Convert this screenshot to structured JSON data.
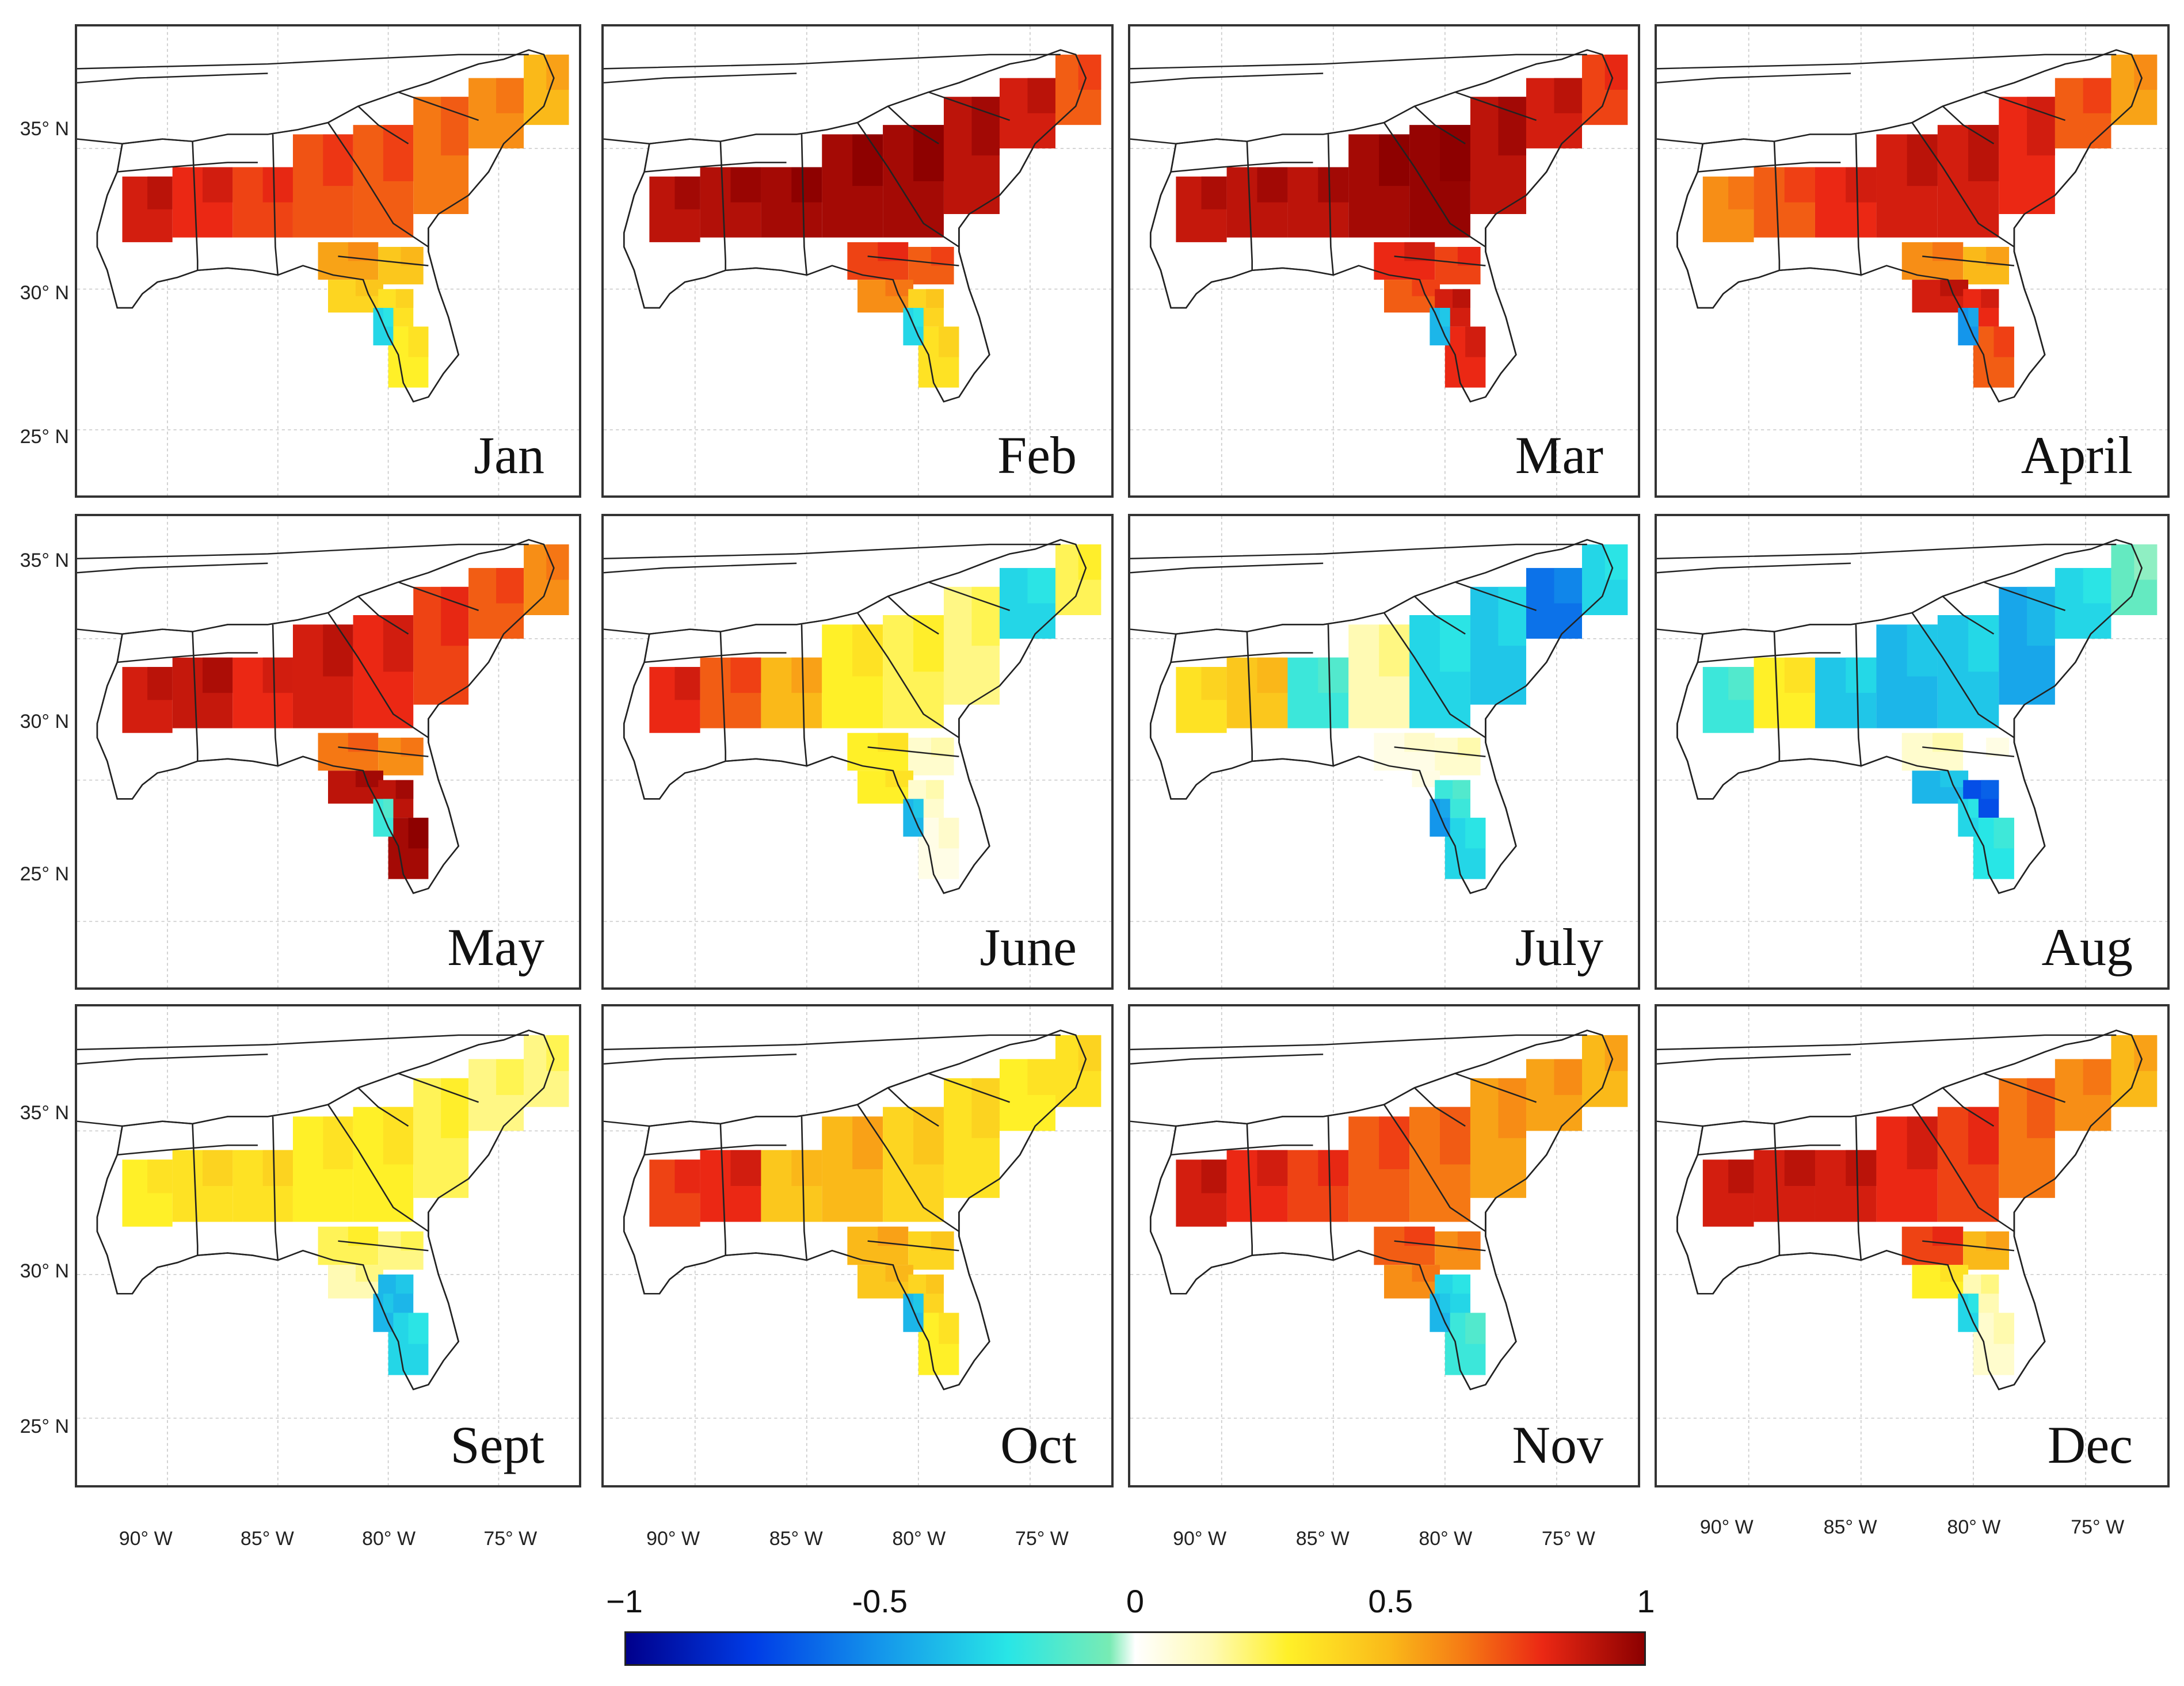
{
  "chart_data": {
    "type": "heatmap",
    "title": "",
    "panels": [
      {
        "month": "Jan",
        "pattern": [
          0.85,
          0.8,
          0.75,
          0.72,
          0.7,
          0.65,
          0.6,
          0.5,
          0.55,
          0.45,
          0.4,
          0.35,
          0.3,
          -0.3
        ]
      },
      {
        "month": "Feb",
        "pattern": [
          0.9,
          0.92,
          0.95,
          0.95,
          0.95,
          0.9,
          0.85,
          0.7,
          0.75,
          0.7,
          0.6,
          0.4,
          0.35,
          -0.3
        ]
      },
      {
        "month": "Mar",
        "pattern": [
          0.88,
          0.9,
          0.9,
          0.95,
          0.98,
          0.9,
          0.85,
          0.75,
          0.8,
          0.75,
          0.7,
          0.85,
          0.8,
          -0.4
        ]
      },
      {
        "month": "April",
        "pattern": [
          0.6,
          0.7,
          0.8,
          0.85,
          0.85,
          0.8,
          0.7,
          0.55,
          0.6,
          0.5,
          0.85,
          0.8,
          0.7,
          -0.5
        ]
      },
      {
        "month": "May",
        "pattern": [
          0.85,
          0.88,
          0.8,
          0.85,
          0.8,
          0.75,
          0.7,
          0.6,
          0.65,
          0.6,
          0.9,
          0.9,
          0.95,
          -0.2
        ]
      },
      {
        "month": "June",
        "pattern": [
          0.8,
          0.7,
          0.5,
          0.3,
          0.25,
          0.2,
          -0.3,
          0.25,
          0.3,
          0.1,
          0.3,
          0.1,
          0.05,
          -0.4
        ]
      },
      {
        "month": "July",
        "pattern": [
          0.35,
          0.45,
          -0.2,
          0.15,
          -0.3,
          -0.35,
          -0.6,
          -0.3,
          0.05,
          0.1,
          0.0,
          -0.2,
          -0.3,
          -0.5
        ]
      },
      {
        "month": "Aug",
        "pattern": [
          -0.2,
          0.3,
          -0.35,
          -0.4,
          -0.35,
          -0.45,
          -0.3,
          -0.1,
          0.1,
          0.0,
          -0.4,
          -0.7,
          -0.25,
          -0.3
        ]
      },
      {
        "month": "Sept",
        "pattern": [
          0.3,
          0.35,
          0.35,
          0.3,
          0.3,
          0.25,
          0.2,
          0.2,
          0.25,
          0.2,
          0.15,
          -0.4,
          -0.3,
          -0.4
        ]
      },
      {
        "month": "Oct",
        "pattern": [
          0.75,
          0.8,
          0.45,
          0.5,
          0.4,
          0.35,
          0.3,
          0.35,
          0.5,
          0.4,
          0.45,
          0.4,
          0.3,
          -0.4
        ]
      },
      {
        "month": "Nov",
        "pattern": [
          0.85,
          0.8,
          0.75,
          0.7,
          0.65,
          0.55,
          0.55,
          0.5,
          0.7,
          0.6,
          0.6,
          -0.3,
          -0.2,
          -0.4
        ]
      },
      {
        "month": "Dec",
        "pattern": [
          0.85,
          0.85,
          0.85,
          0.8,
          0.75,
          0.65,
          0.6,
          0.5,
          0.75,
          0.5,
          0.3,
          0.15,
          0.1,
          -0.3
        ]
      }
    ],
    "lat_labels": [
      "35° N",
      "30° N",
      "25° N"
    ],
    "lon_labels": [
      "90° W",
      "85° W",
      "80° W",
      "75° W"
    ],
    "colorbar": {
      "range": [
        -1,
        1
      ],
      "ticks": [
        "−1",
        "-0.5",
        "0",
        "0.5",
        "1"
      ],
      "colormap": "blue-cyan-white-yellow-red"
    }
  },
  "colors": {
    "border": "#333333",
    "state_line": "#222222",
    "grid": "#cccccc"
  }
}
